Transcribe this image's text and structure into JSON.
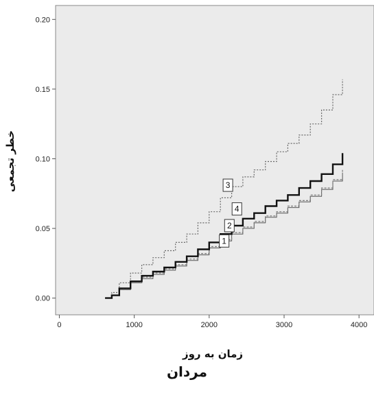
{
  "chart_data": {
    "type": "line",
    "xlabel": "زمان به روز",
    "ylabel": "خطر تجمعی",
    "caption": "مردان",
    "xlim": [
      -50,
      4200
    ],
    "ylim": [
      -0.012,
      0.21
    ],
    "xticks": [
      0,
      1000,
      2000,
      3000,
      4000
    ],
    "xtick_labels": [
      "0",
      "1000",
      "2000",
      "3000",
      "4000"
    ],
    "yticks": [
      0.0,
      0.05,
      0.1,
      0.15,
      0.2
    ],
    "ytick_labels": [
      "0.00",
      "0.05",
      "0.10",
      "0.15",
      "0.20"
    ],
    "grid": false,
    "background": "#ebebeb",
    "series": [
      {
        "label": "1",
        "label_x": 2200,
        "label_y": 0.041,
        "color": "#555555",
        "dash": "none",
        "width": 1,
        "x": [
          610,
          700,
          800,
          950,
          1100,
          1250,
          1400,
          1550,
          1700,
          1850,
          2000,
          2150,
          2300,
          2450,
          2600,
          2750,
          2900,
          3050,
          3200,
          3350,
          3500,
          3650,
          3780
        ],
        "y": [
          0.0,
          0.002,
          0.006,
          0.011,
          0.014,
          0.017,
          0.02,
          0.023,
          0.027,
          0.031,
          0.036,
          0.041,
          0.046,
          0.05,
          0.054,
          0.058,
          0.061,
          0.065,
          0.069,
          0.073,
          0.078,
          0.084,
          0.09
        ]
      },
      {
        "label": "2",
        "label_x": 2270,
        "label_y": 0.052,
        "color": "#777777",
        "dash": "3,2",
        "width": 1.2,
        "x": [
          610,
          700,
          800,
          950,
          1100,
          1250,
          1400,
          1550,
          1700,
          1850,
          2000,
          2150,
          2300,
          2450,
          2600,
          2750,
          2900,
          3050,
          3200,
          3350,
          3500,
          3650,
          3780
        ],
        "y": [
          0.0,
          0.002,
          0.006,
          0.011,
          0.015,
          0.018,
          0.021,
          0.024,
          0.028,
          0.032,
          0.037,
          0.042,
          0.047,
          0.051,
          0.055,
          0.059,
          0.062,
          0.066,
          0.07,
          0.074,
          0.079,
          0.085,
          0.092
        ]
      },
      {
        "label": "3",
        "label_x": 2250,
        "label_y": 0.081,
        "color": "#666666",
        "dash": "2,2",
        "width": 1.2,
        "x": [
          610,
          700,
          800,
          950,
          1100,
          1250,
          1400,
          1550,
          1700,
          1850,
          2000,
          2150,
          2300,
          2450,
          2600,
          2750,
          2900,
          3050,
          3200,
          3350,
          3500,
          3650,
          3780
        ],
        "y": [
          0.0,
          0.004,
          0.011,
          0.018,
          0.024,
          0.029,
          0.034,
          0.04,
          0.046,
          0.054,
          0.062,
          0.072,
          0.08,
          0.087,
          0.092,
          0.098,
          0.105,
          0.111,
          0.117,
          0.125,
          0.135,
          0.146,
          0.157
        ]
      },
      {
        "label": "4",
        "label_x": 2370,
        "label_y": 0.064,
        "color": "#111111",
        "dash": "none",
        "width": 2.4,
        "x": [
          610,
          700,
          800,
          950,
          1100,
          1250,
          1400,
          1550,
          1700,
          1850,
          2000,
          2150,
          2300,
          2450,
          2600,
          2750,
          2900,
          3050,
          3200,
          3350,
          3500,
          3650,
          3780
        ],
        "y": [
          0.0,
          0.002,
          0.007,
          0.012,
          0.016,
          0.019,
          0.022,
          0.026,
          0.03,
          0.035,
          0.04,
          0.046,
          0.052,
          0.057,
          0.061,
          0.066,
          0.07,
          0.074,
          0.079,
          0.084,
          0.089,
          0.096,
          0.104
        ]
      }
    ]
  }
}
